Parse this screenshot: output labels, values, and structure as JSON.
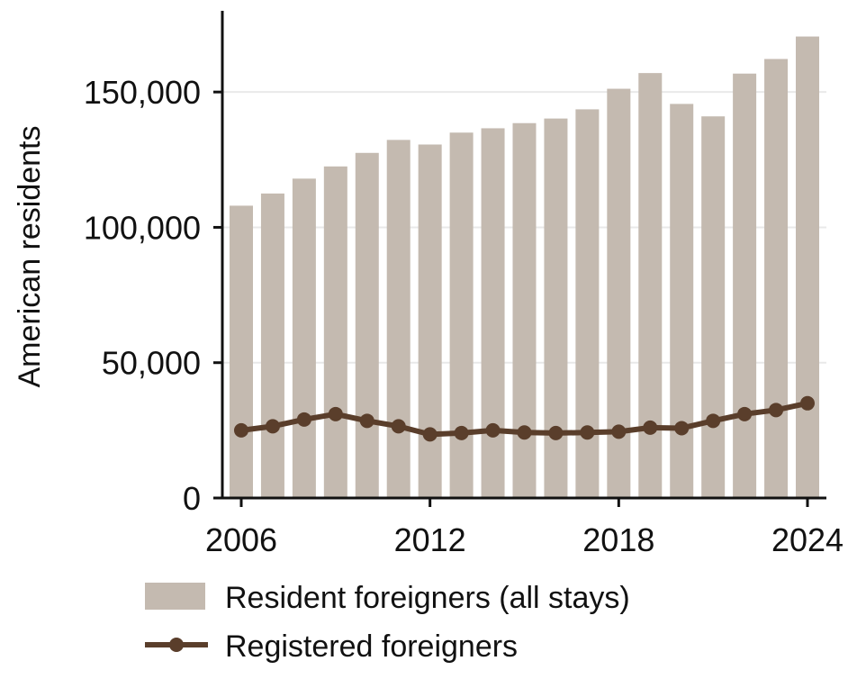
{
  "chart_data": {
    "type": "bar",
    "ylabel": "American residents",
    "xlabel": "",
    "title": "",
    "ylim": [
      0,
      180000
    ],
    "yticks": [
      0,
      50000,
      100000,
      150000
    ],
    "ytick_labels": [
      "0",
      "50,000",
      "100,000",
      "150,000"
    ],
    "xticks": [
      2006,
      2012,
      2018,
      2024
    ],
    "xtick_labels": [
      "2006",
      "2012",
      "2018",
      "2024"
    ],
    "grid": "horizontal",
    "legend_position": "bottom",
    "x": [
      2006,
      2007,
      2008,
      2009,
      2010,
      2011,
      2012,
      2013,
      2014,
      2015,
      2016,
      2017,
      2018,
      2019,
      2020,
      2021,
      2022,
      2023,
      2024
    ],
    "series": [
      {
        "name": "Resident foreigners (all stays)",
        "kind": "bar",
        "color": "#c4bab0",
        "values": [
          108000,
          112500,
          118000,
          122500,
          127500,
          132300,
          130600,
          135000,
          136600,
          138500,
          140200,
          143600,
          151200,
          157000,
          145600,
          141000,
          156800,
          162200,
          170500
        ]
      },
      {
        "name": "Registered foreigners",
        "kind": "line",
        "color": "#5a3e2b",
        "values": [
          25000,
          26500,
          29000,
          31000,
          28500,
          26500,
          23500,
          24000,
          25000,
          24200,
          24000,
          24200,
          24500,
          26000,
          25800,
          28500,
          31000,
          32500,
          35000
        ]
      }
    ]
  }
}
